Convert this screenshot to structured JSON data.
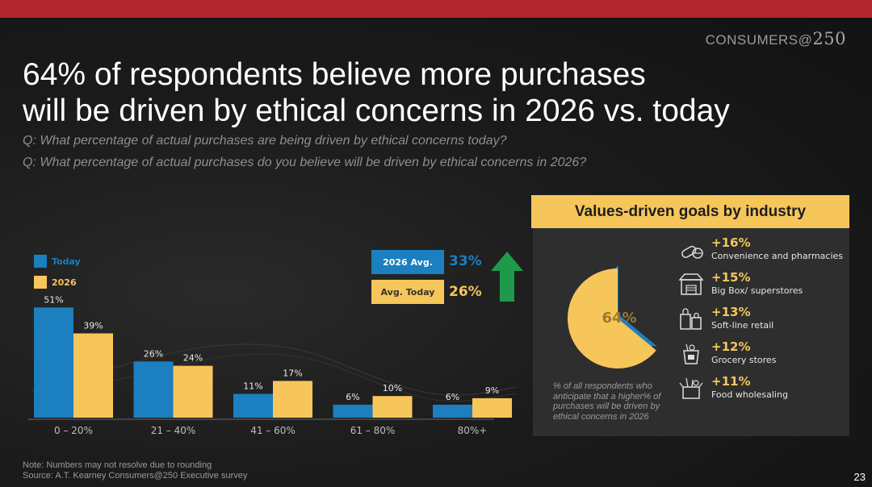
{
  "brand": {
    "text": "CONSUMERS",
    "at": "@",
    "num": "250"
  },
  "title": {
    "line1": "64% of respondents believe more purchases",
    "line2": "will be driven by ethical concerns in 2026 vs. today"
  },
  "questions": [
    "Q: What percentage of actual purchases are being driven by ethical concerns today?",
    "Q: What percentage of actual purchases do you believe will be driven by ethical concerns in 2026?"
  ],
  "chart_data": {
    "type": "bar",
    "categories": [
      "0 – 20%",
      "21 – 40%",
      "41 – 60%",
      "61 – 80%",
      "80%+"
    ],
    "series": [
      {
        "name": "Today",
        "color": "#1b7fc0",
        "values": [
          51,
          26,
          11,
          6,
          6
        ],
        "labels": [
          "51%",
          "26%",
          "11%",
          "6%",
          "6%"
        ]
      },
      {
        "name": "2026",
        "color": "#f7c65a",
        "values": [
          39,
          24,
          17,
          10,
          9
        ],
        "labels": [
          "39%",
          "24%",
          "17%",
          "10%",
          "9%"
        ]
      }
    ],
    "ylim": [
      0,
      60
    ],
    "legend": "top-left",
    "grid": false
  },
  "averages": {
    "avg_2026_label": "2026 Avg.",
    "avg_2026_value": "33%",
    "avg_today_label": "Avg. Today",
    "avg_today_value": "26%",
    "arrow_icon": "up-arrow-icon",
    "arrow_color": "#1e9a4a"
  },
  "panel": {
    "title": "Values-driven goals by industry",
    "pie_label": "64%",
    "pie_value": 64,
    "pie_note": "% of all respondents who anticipate that a higher% of purchases will be driven by ethical concerns in 2026",
    "industries": [
      {
        "pct": "+16%",
        "label": "Convenience and pharmacies",
        "icon": "pills-icon"
      },
      {
        "pct": "+15%",
        "label": "Big Box/ superstores",
        "icon": "storefront-icon"
      },
      {
        "pct": "+13%",
        "label": "Soft-line retail",
        "icon": "shopping-bags-icon"
      },
      {
        "pct": "+12%",
        "label": "Grocery stores",
        "icon": "grocery-bag-icon"
      },
      {
        "pct": "+11%",
        "label": "Food wholesaling",
        "icon": "food-box-icon"
      }
    ]
  },
  "footer": {
    "note": "Note: Numbers may not resolve due to rounding",
    "source": "Source: A.T. Kearney Consumers@250 Executive survey",
    "page": "23"
  },
  "colors": {
    "accent_red": "#b2262f",
    "blue": "#1b7fc0",
    "yellow": "#f7c65a",
    "green": "#1e9a4a"
  }
}
